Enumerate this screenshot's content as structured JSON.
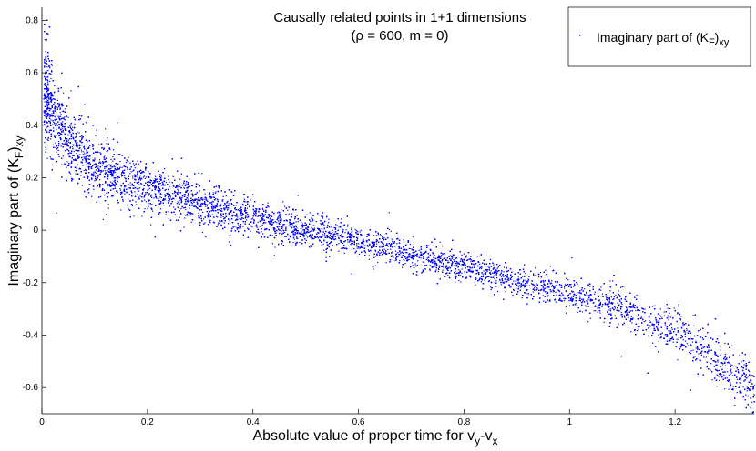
{
  "chart_data": {
    "type": "scatter",
    "title": "Causally related points in 1+1 dimensions",
    "subtitle": "(ρ = 600, m = 0)",
    "xlabel": {
      "main": "Absolute value of proper time for v",
      "sub1": "y",
      "mid": "-v",
      "sub2": "x"
    },
    "ylabel": {
      "main": "Imaginary part of (K",
      "sub1": "F",
      "mid": ")",
      "sub2": "xy"
    },
    "xlim": [
      0,
      1.35
    ],
    "ylim": [
      -0.7,
      0.85
    ],
    "xticks": [
      0,
      0.2,
      0.4,
      0.6,
      0.8,
      1,
      1.2
    ],
    "xtick_labels": [
      "0",
      "0.2",
      "0.4",
      "0.6",
      "0.8",
      "1",
      "1.2"
    ],
    "yticks": [
      -0.6,
      -0.4,
      -0.2,
      0,
      0.2,
      0.4,
      0.6,
      0.8
    ],
    "ytick_labels": [
      "-0.6",
      "-0.4",
      "-0.2",
      "0",
      "0.2",
      "0.4",
      "0.6",
      "0.8"
    ],
    "legend": {
      "position": "top-right",
      "main": "Imaginary part of (K",
      "sub1": "F",
      "mid": ")",
      "sub2": "xy"
    },
    "marker_color": "#0000ff",
    "series": [
      {
        "name": "Imaginary part of (K_F)_xy",
        "trend": {
          "x": [
            0.005,
            0.02,
            0.04,
            0.06,
            0.08,
            0.1,
            0.15,
            0.2,
            0.3,
            0.4,
            0.5,
            0.6,
            0.7,
            0.8,
            0.9,
            1.0,
            1.1,
            1.2,
            1.3,
            1.35
          ],
          "y": [
            0.55,
            0.43,
            0.37,
            0.32,
            0.28,
            0.25,
            0.2,
            0.16,
            0.1,
            0.05,
            0.0,
            -0.04,
            -0.09,
            -0.14,
            -0.19,
            -0.24,
            -0.3,
            -0.38,
            -0.53,
            -0.62
          ],
          "spread": [
            0.1,
            0.08,
            0.07,
            0.065,
            0.06,
            0.055,
            0.05,
            0.045,
            0.04,
            0.035,
            0.03,
            0.028,
            0.026,
            0.025,
            0.025,
            0.03,
            0.035,
            0.04,
            0.05,
            0.05
          ]
        },
        "n_points": 14000
      }
    ]
  }
}
